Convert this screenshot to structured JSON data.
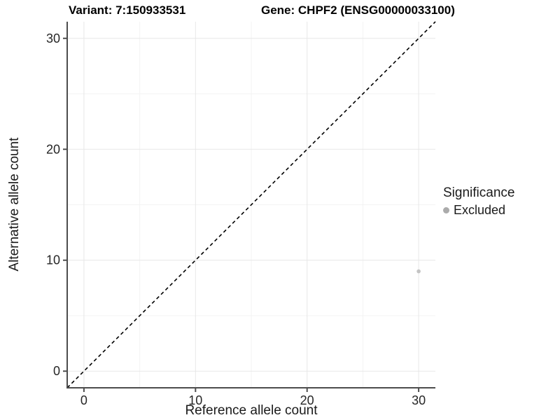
{
  "header": {
    "variant_title": "Variant: 7:150933531",
    "gene_title": "Gene: CHPF2 (ENSG00000033100)"
  },
  "axes": {
    "x_label": "Reference allele count",
    "y_label": "Alternative allele count"
  },
  "legend": {
    "title": "Significance",
    "items": [
      {
        "label": "Excluded",
        "marker_color": "#ababab"
      }
    ]
  },
  "chart_data": {
    "type": "scatter",
    "title_left": "Variant: 7:150933531",
    "title_right": "Gene: CHPF2 (ENSG00000033100)",
    "xlabel": "Reference allele count",
    "ylabel": "Alternative allele count",
    "xlim": [
      -1.5,
      31.5
    ],
    "ylim": [
      -1.5,
      31.5
    ],
    "x_ticks": [
      0,
      10,
      20,
      30
    ],
    "y_ticks": [
      0,
      10,
      20,
      30
    ],
    "x_minor_ticks": [
      5,
      15,
      25
    ],
    "y_minor_ticks": [
      5,
      15,
      25
    ],
    "grid": "major and minor light grey gridlines on white panel",
    "legend_position": "right",
    "series": [
      {
        "name": "Excluded",
        "color": "#c4c4c4",
        "points": [
          {
            "x": 30,
            "y": 9
          }
        ]
      }
    ],
    "reference_line": {
      "description": "identity line y = x",
      "slope": 1,
      "intercept": 0,
      "style": "dashed",
      "color": "#000000"
    }
  },
  "colors": {
    "background": "#ffffff",
    "axis_line": "#4d4d4d",
    "tick_label": "#262626",
    "grid_major": "#e7e7e7",
    "grid_minor": "#f3f3f3",
    "point": "#c4c4c4",
    "legend_marker": "#ababab",
    "reference_line": "#000000"
  }
}
